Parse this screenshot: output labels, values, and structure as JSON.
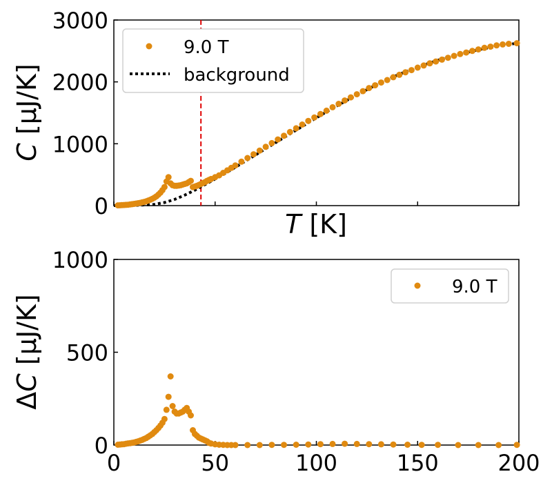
{
  "chart_data": [
    {
      "type": "scatter",
      "panel": "top",
      "xlim": [
        0,
        200
      ],
      "ylim": [
        0,
        3000
      ],
      "yticks": [
        0,
        1000,
        2000,
        3000
      ],
      "ytick_labels": [
        "0",
        "1000",
        "2000",
        "3000"
      ],
      "xticks": [
        0,
        50,
        100,
        150,
        200
      ],
      "xlabel": {
        "italic": "T",
        "rest": " [K]"
      },
      "ylabel": {
        "italic": "C",
        "rest": " [μJ/K]"
      },
      "transition_line_x": 43,
      "legend_position": "upper-left",
      "series": [
        {
          "name": "9.0 T",
          "kind": "markers",
          "color": "#E08A10",
          "x": [
            2,
            3,
            4,
            5,
            6,
            7,
            8,
            9,
            10,
            11,
            12,
            13,
            14,
            15,
            16,
            17,
            18,
            19,
            20,
            21,
            22,
            23,
            24,
            25,
            26,
            27,
            28,
            29,
            30,
            31,
            32,
            33,
            34,
            35,
            36,
            37,
            38,
            39,
            40,
            41,
            42,
            43,
            44,
            45,
            46,
            47,
            48,
            50,
            52,
            54,
            56,
            58,
            60,
            63,
            66,
            69,
            72,
            75,
            78,
            81,
            84,
            87,
            90,
            93,
            96,
            99,
            102,
            105,
            108,
            111,
            114,
            117,
            120,
            123,
            126,
            129,
            132,
            135,
            138,
            141,
            144,
            147,
            150,
            153,
            156,
            159,
            162,
            165,
            168,
            171,
            174,
            177,
            180,
            183,
            186,
            189,
            192,
            195,
            199
          ],
          "y": [
            5,
            6,
            8,
            10,
            12,
            15,
            19,
            23,
            28,
            33,
            39,
            45,
            52,
            60,
            70,
            82,
            95,
            110,
            128,
            150,
            178,
            210,
            250,
            300,
            390,
            460,
            360,
            330,
            320,
            320,
            325,
            330,
            340,
            350,
            360,
            380,
            400,
            300,
            310,
            320,
            335,
            350,
            365,
            380,
            400,
            415,
            430,
            460,
            490,
            530,
            570,
            610,
            650,
            710,
            770,
            830,
            890,
            950,
            1010,
            1070,
            1130,
            1190,
            1250,
            1310,
            1370,
            1425,
            1480,
            1535,
            1590,
            1645,
            1700,
            1750,
            1800,
            1850,
            1900,
            1945,
            1990,
            2030,
            2075,
            2115,
            2155,
            2190,
            2230,
            2265,
            2300,
            2330,
            2360,
            2390,
            2420,
            2450,
            2475,
            2500,
            2525,
            2550,
            2570,
            2590,
            2605,
            2615,
            2625
          ]
        },
        {
          "name": "background",
          "kind": "dotted-line",
          "color": "#000000",
          "x": [
            0,
            10,
            20,
            25,
            30,
            35,
            40,
            45,
            50,
            55,
            60,
            70,
            80,
            90,
            100,
            110,
            120,
            130,
            140,
            150,
            160,
            170,
            180,
            190,
            200
          ],
          "y": [
            0,
            2,
            20,
            50,
            100,
            170,
            250,
            340,
            430,
            520,
            620,
            820,
            1020,
            1220,
            1420,
            1610,
            1790,
            1960,
            2110,
            2240,
            2350,
            2440,
            2520,
            2580,
            2630
          ]
        }
      ]
    },
    {
      "type": "scatter",
      "panel": "bottom",
      "xlim": [
        0,
        200
      ],
      "ylim": [
        0,
        1000
      ],
      "yticks": [
        0,
        500,
        1000
      ],
      "ytick_labels": [
        "0",
        "500",
        "1000"
      ],
      "xticks": [
        0,
        50,
        100,
        150,
        200
      ],
      "xtick_labels": [
        "0",
        "50",
        "100",
        "150",
        "200"
      ],
      "ylabel": {
        "prefix": "Δ",
        "italic": "C",
        "rest": " [μJ/K]"
      },
      "legend_position": "upper-right",
      "series": [
        {
          "name": "9.0 T",
          "kind": "markers",
          "color": "#E08A10",
          "x": [
            2,
            3,
            4,
            5,
            6,
            7,
            8,
            9,
            10,
            11,
            12,
            13,
            14,
            15,
            16,
            17,
            18,
            19,
            20,
            21,
            22,
            23,
            24,
            25,
            26,
            27,
            28,
            29,
            30,
            31,
            32,
            33,
            34,
            35,
            36,
            37,
            38,
            39,
            40,
            41,
            42,
            43,
            44,
            45,
            46,
            47,
            48,
            50,
            52,
            54,
            56,
            58,
            60,
            66,
            72,
            78,
            84,
            90,
            96,
            102,
            108,
            114,
            120,
            126,
            132,
            138,
            145,
            152,
            160,
            170,
            180,
            190,
            199
          ],
          "y": [
            2,
            3,
            4,
            5,
            7,
            9,
            10,
            12,
            14,
            17,
            20,
            24,
            28,
            33,
            38,
            45,
            52,
            60,
            70,
            80,
            92,
            105,
            120,
            140,
            190,
            260,
            370,
            210,
            180,
            170,
            170,
            175,
            180,
            190,
            200,
            180,
            160,
            80,
            60,
            50,
            40,
            35,
            30,
            25,
            20,
            12,
            8,
            4,
            2,
            1,
            0,
            0,
            0,
            0,
            0,
            1,
            1,
            2,
            3,
            5,
            6,
            7,
            6,
            5,
            4,
            3,
            2,
            1,
            1,
            0,
            0,
            0,
            1
          ]
        }
      ]
    }
  ]
}
